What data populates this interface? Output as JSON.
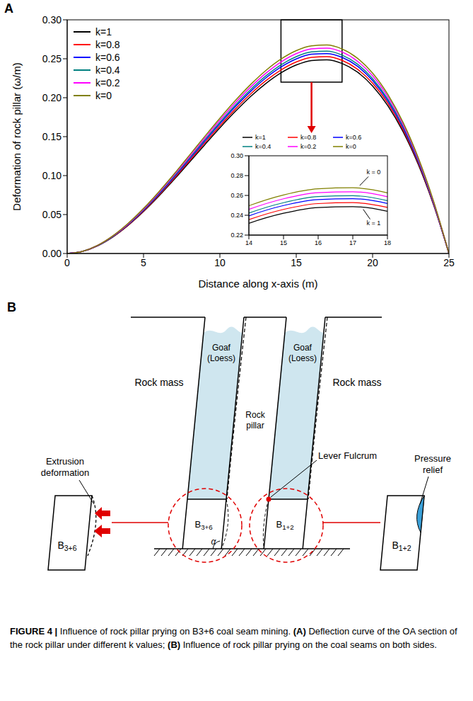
{
  "panel_labels": [
    "A",
    "B"
  ],
  "chart_data": {
    "type": "line",
    "xlabel": "Distance along x-axis (m)",
    "ylabel": "Deformation of rock pillar (ω/m)",
    "x": [
      0,
      1,
      2,
      3,
      4,
      5,
      6,
      7,
      8,
      9,
      10,
      11,
      12,
      13,
      14,
      15,
      16,
      17,
      18,
      19,
      20,
      21,
      22,
      23,
      24,
      25
    ],
    "series": [
      {
        "name": "k=1",
        "color": "#000000",
        "values": [
          0,
          0.0026,
          0.0099,
          0.0213,
          0.0362,
          0.0538,
          0.0736,
          0.0949,
          0.117,
          0.1394,
          0.1614,
          0.1822,
          0.2014,
          0.2181,
          0.2319,
          0.242,
          0.2478,
          0.2487,
          0.244,
          0.233,
          0.2151,
          0.1897,
          0.1562,
          0.1138,
          0.062,
          0
        ]
      },
      {
        "name": "k=0.8",
        "color": "#ff0000",
        "values": [
          0,
          0.0026,
          0.01,
          0.0216,
          0.0367,
          0.0546,
          0.0748,
          0.0964,
          0.1189,
          0.1417,
          0.1639,
          0.1851,
          0.2046,
          0.2217,
          0.2356,
          0.2459,
          0.2518,
          0.2527,
          0.2479,
          0.2367,
          0.2186,
          0.1928,
          0.1587,
          0.1156,
          0.0629,
          0
        ]
      },
      {
        "name": "k=0.6",
        "color": "#0000ff",
        "values": [
          0,
          0.0027,
          0.0102,
          0.022,
          0.0373,
          0.0555,
          0.0759,
          0.0979,
          0.1208,
          0.1439,
          0.1665,
          0.1881,
          0.2078,
          0.2252,
          0.2394,
          0.2498,
          0.2558,
          0.2567,
          0.2518,
          0.2405,
          0.222,
          0.1958,
          0.1612,
          0.1175,
          0.0639,
          0
        ]
      },
      {
        "name": "k=0.4",
        "color": "#008080",
        "values": [
          0,
          0.0027,
          0.0103,
          0.0222,
          0.0378,
          0.0562,
          0.0768,
          0.0991,
          0.1222,
          0.1456,
          0.1685,
          0.1903,
          0.2103,
          0.2278,
          0.2422,
          0.2527,
          0.2588,
          0.2597,
          0.2547,
          0.2433,
          0.2246,
          0.1981,
          0.1631,
          0.1188,
          0.0647,
          0
        ]
      },
      {
        "name": "k=0.2",
        "color": "#ff00ff",
        "values": [
          0,
          0.0027,
          0.0105,
          0.0226,
          0.0383,
          0.057,
          0.078,
          0.1006,
          0.1241,
          0.1478,
          0.1711,
          0.1932,
          0.2135,
          0.2313,
          0.2459,
          0.2566,
          0.2628,
          0.2637,
          0.2587,
          0.247,
          0.2281,
          0.2012,
          0.1656,
          0.1207,
          0.0657,
          0
        ]
      },
      {
        "name": "k=0",
        "color": "#808000",
        "values": [
          0,
          0.0028,
          0.0106,
          0.0229,
          0.0389,
          0.0579,
          0.0792,
          0.1021,
          0.126,
          0.1501,
          0.1737,
          0.1961,
          0.2167,
          0.2348,
          0.2496,
          0.2605,
          0.2667,
          0.2677,
          0.2626,
          0.2508,
          0.2316,
          0.2042,
          0.1681,
          0.1225,
          0.0667,
          0
        ]
      }
    ],
    "xlim": [
      0,
      25
    ],
    "xticks": [
      0,
      5,
      10,
      15,
      20,
      25
    ],
    "ylim": [
      0,
      0.3
    ],
    "yticks": [
      {
        "value": 0,
        "label": "0.00"
      },
      0.05,
      {
        "value": 0.1,
        "label": "0.10"
      },
      0.15,
      {
        "value": 0.2,
        "label": "0.20"
      },
      0.25,
      {
        "value": 0.3,
        "label": "0.30"
      }
    ],
    "legend": "upper left",
    "grid": false,
    "inset": {
      "xlim": [
        14,
        18
      ],
      "xticks": [
        14,
        15,
        16,
        17,
        18
      ],
      "ylim": [
        0.22,
        0.3
      ],
      "yticks": [
        0.22,
        0.24,
        0.26,
        0.28,
        {
          "value": 0.3,
          "label": "0.30"
        }
      ],
      "legend": "top",
      "annotations": [
        "k = 0",
        "k = 1"
      ]
    }
  },
  "diagram": {
    "goaf": "Goaf (Loess)",
    "rock_mass": "Rock mass",
    "rock_pillar": "Rock pillar",
    "extrusion": "Extrusion deformation",
    "fulcrum": "Lever Fulcrum",
    "relief": "Pressure relief",
    "seam_left": "B3+6",
    "seam_right": "B1+2",
    "angle": "α"
  },
  "caption": {
    "label": "FIGURE 4 |",
    "title": "Influence of rock pillar prying on B3+6 coal seam mining.",
    "parts": [
      {
        "letter": "(A)",
        "text": "Deflection curve of the OA section of the rock pillar under different k values;"
      },
      {
        "letter": "(B)",
        "text": "Influence of rock pillar prying on the coal seams on both sides."
      }
    ]
  }
}
